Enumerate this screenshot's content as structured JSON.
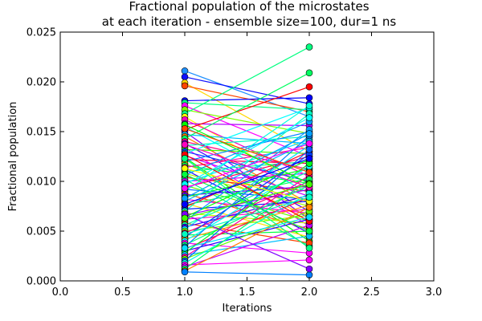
{
  "chart_data": {
    "type": "line",
    "title_lines": [
      "Fractional population of the microstates",
      "at each iteration - ensemble size=100, dur=1 ns"
    ],
    "xlabel": "Iterations",
    "ylabel": "Fractional population",
    "xlim": [
      0.0,
      3.0
    ],
    "ylim": [
      0.0,
      0.025
    ],
    "xticks": [
      "0.0",
      "0.5",
      "1.0",
      "1.5",
      "2.0",
      "2.5",
      "3.0"
    ],
    "yticks": [
      "0.000",
      "0.005",
      "0.010",
      "0.015",
      "0.020",
      "0.025"
    ],
    "grid": false,
    "legend": "none",
    "x": [
      1,
      2
    ],
    "series": [
      {
        "values": [
          0.0211,
          0.0165
        ],
        "color": "#1e90ff"
      },
      {
        "values": [
          0.0205,
          0.0178
        ],
        "color": "#1010ff"
      },
      {
        "values": [
          0.0199,
          0.013
        ],
        "color": "#ffd700"
      },
      {
        "values": [
          0.0196,
          0.017
        ],
        "color": "#ff4500"
      },
      {
        "values": [
          0.0181,
          0.0184
        ],
        "color": "#0000ff"
      },
      {
        "values": [
          0.0179,
          0.0172
        ],
        "color": "#00ff80"
      },
      {
        "values": [
          0.0176,
          0.0125
        ],
        "color": "#ff00ff"
      },
      {
        "values": [
          0.0172,
          0.0148
        ],
        "color": "#80ff00"
      },
      {
        "values": [
          0.0168,
          0.0235
        ],
        "color": "#00ff80"
      },
      {
        "values": [
          0.0165,
          0.0092
        ],
        "color": "#ffff00"
      },
      {
        "values": [
          0.0162,
          0.0105
        ],
        "color": "#ff00c0"
      },
      {
        "values": [
          0.0158,
          0.0156
        ],
        "color": "#b000ff"
      },
      {
        "values": [
          0.0155,
          0.0088
        ],
        "color": "#00ffff"
      },
      {
        "values": [
          0.0152,
          0.0195
        ],
        "color": "#ff0000"
      },
      {
        "values": [
          0.015,
          0.0062
        ],
        "color": "#8000ff"
      },
      {
        "values": [
          0.0147,
          0.0138
        ],
        "color": "#00c0ff"
      },
      {
        "values": [
          0.0145,
          0.0078
        ],
        "color": "#ff8000"
      },
      {
        "values": [
          0.0143,
          0.0209
        ],
        "color": "#00ff60"
      },
      {
        "values": [
          0.014,
          0.0112
        ],
        "color": "#ff0080"
      },
      {
        "values": [
          0.0138,
          0.007
        ],
        "color": "#4000ff"
      },
      {
        "values": [
          0.0136,
          0.0145
        ],
        "color": "#00ffc0"
      },
      {
        "values": [
          0.0134,
          0.0055
        ],
        "color": "#ff00ff"
      },
      {
        "values": [
          0.0132,
          0.0128
        ],
        "color": "#40ff00"
      },
      {
        "values": [
          0.013,
          0.01
        ],
        "color": "#0040ff"
      },
      {
        "values": [
          0.0128,
          0.0174
        ],
        "color": "#00ffff"
      },
      {
        "values": [
          0.0126,
          0.0085
        ],
        "color": "#c000ff"
      },
      {
        "values": [
          0.0124,
          0.004
        ],
        "color": "#00ff00"
      },
      {
        "values": [
          0.0122,
          0.0118
        ],
        "color": "#ff0040"
      },
      {
        "values": [
          0.012,
          0.015
        ],
        "color": "#0080ff"
      },
      {
        "values": [
          0.0118,
          0.0065
        ],
        "color": "#ffc000"
      },
      {
        "values": [
          0.0116,
          0.0098
        ],
        "color": "#00ff40"
      },
      {
        "values": [
          0.0114,
          0.0134
        ],
        "color": "#ff00a0"
      },
      {
        "values": [
          0.0112,
          0.0048
        ],
        "color": "#2000ff"
      },
      {
        "values": [
          0.011,
          0.012
        ],
        "color": "#00ffa0"
      },
      {
        "values": [
          0.0108,
          0.0075
        ],
        "color": "#a0ff00"
      },
      {
        "values": [
          0.0106,
          0.016
        ],
        "color": "#00a0ff"
      },
      {
        "values": [
          0.0104,
          0.009
        ],
        "color": "#ff2000"
      },
      {
        "values": [
          0.0102,
          0.0035
        ],
        "color": "#00ff80"
      },
      {
        "values": [
          0.01,
          0.0108
        ],
        "color": "#e000ff"
      },
      {
        "values": [
          0.0098,
          0.0142
        ],
        "color": "#00e0ff"
      },
      {
        "values": [
          0.0096,
          0.006
        ],
        "color": "#60ff00"
      },
      {
        "values": [
          0.0094,
          0.0125
        ],
        "color": "#ff0060"
      },
      {
        "values": [
          0.0092,
          0.0082
        ],
        "color": "#0060ff"
      },
      {
        "values": [
          0.009,
          0.0176
        ],
        "color": "#00ffe0"
      },
      {
        "values": [
          0.0088,
          0.0052
        ],
        "color": "#ff6000"
      },
      {
        "values": [
          0.0086,
          0.0095
        ],
        "color": "#6000ff"
      },
      {
        "values": [
          0.0084,
          0.0113
        ],
        "color": "#00ff20"
      },
      {
        "values": [
          0.0082,
          0.0068
        ],
        "color": "#ff00e0"
      },
      {
        "values": [
          0.008,
          0.014
        ],
        "color": "#00c0ff"
      },
      {
        "values": [
          0.0078,
          0.0044
        ],
        "color": "#ffe000"
      },
      {
        "values": [
          0.0076,
          0.0103
        ],
        "color": "#00ff60"
      },
      {
        "values": [
          0.0074,
          0.013
        ],
        "color": "#ff0020"
      },
      {
        "values": [
          0.0072,
          0.008
        ],
        "color": "#0020ff"
      },
      {
        "values": [
          0.007,
          0.0168
        ],
        "color": "#00ffc0"
      },
      {
        "values": [
          0.0068,
          0.0058
        ],
        "color": "#c0ff00"
      },
      {
        "values": [
          0.0066,
          0.0092
        ],
        "color": "#a000ff"
      },
      {
        "values": [
          0.0064,
          0.0122
        ],
        "color": "#00ff00"
      },
      {
        "values": [
          0.0062,
          0.0072
        ],
        "color": "#ff00c0"
      },
      {
        "values": [
          0.006,
          0.0152
        ],
        "color": "#00a0ff"
      },
      {
        "values": [
          0.0058,
          0.0038
        ],
        "color": "#ff4000"
      },
      {
        "values": [
          0.0056,
          0.011
        ],
        "color": "#00ffa0"
      },
      {
        "values": [
          0.0054,
          0.0086
        ],
        "color": "#4000ff"
      },
      {
        "values": [
          0.0052,
          0.0136
        ],
        "color": "#00e0ff"
      },
      {
        "values": [
          0.005,
          0.0066
        ],
        "color": "#80ff00"
      },
      {
        "values": [
          0.0048,
          0.01
        ],
        "color": "#ff0080"
      },
      {
        "values": [
          0.0046,
          0.005
        ],
        "color": "#00ff40"
      },
      {
        "values": [
          0.0044,
          0.0127
        ],
        "color": "#0040ff"
      },
      {
        "values": [
          0.0042,
          0.0076
        ],
        "color": "#ffa000"
      },
      {
        "values": [
          0.004,
          0.0115
        ],
        "color": "#00ffff"
      },
      {
        "values": [
          0.0038,
          0.0028
        ],
        "color": "#ff00ff"
      },
      {
        "values": [
          0.0036,
          0.0096
        ],
        "color": "#00ff80"
      },
      {
        "values": [
          0.0034,
          0.0146
        ],
        "color": "#0080ff"
      },
      {
        "values": [
          0.0032,
          0.0084
        ],
        "color": "#ff0040"
      },
      {
        "values": [
          0.003,
          0.0062
        ],
        "color": "#2000ff"
      },
      {
        "values": [
          0.0028,
          0.0118
        ],
        "color": "#00ff20"
      },
      {
        "values": [
          0.0026,
          0.0045
        ],
        "color": "#00c0ff"
      },
      {
        "values": [
          0.0024,
          0.0106
        ],
        "color": "#ff00a0"
      },
      {
        "values": [
          0.0022,
          0.007
        ],
        "color": "#60ff00"
      },
      {
        "values": [
          0.002,
          0.0132
        ],
        "color": "#0060ff"
      },
      {
        "values": [
          0.0018,
          0.0088
        ],
        "color": "#00ffe0"
      },
      {
        "values": [
          0.0016,
          0.0021
        ],
        "color": "#ff00ff"
      },
      {
        "values": [
          0.0014,
          0.0056
        ],
        "color": "#c000ff"
      },
      {
        "values": [
          0.0012,
          0.0102
        ],
        "color": "#00ff60"
      },
      {
        "values": [
          0.001,
          0.0074
        ],
        "color": "#ff8000"
      },
      {
        "values": [
          0.0009,
          0.0006
        ],
        "color": "#0080ff"
      },
      {
        "values": [
          0.0157,
          0.0098
        ],
        "color": "#00ff00"
      },
      {
        "values": [
          0.0127,
          0.006
        ],
        "color": "#ff0000"
      },
      {
        "values": [
          0.0097,
          0.0164
        ],
        "color": "#00ffff"
      },
      {
        "values": [
          0.0067,
          0.0012
        ],
        "color": "#8000ff"
      },
      {
        "values": [
          0.0113,
          0.008
        ],
        "color": "#ffff00"
      },
      {
        "values": [
          0.0083,
          0.0148
        ],
        "color": "#00a0ff"
      },
      {
        "values": [
          0.0137,
          0.0094
        ],
        "color": "#ff00c0"
      },
      {
        "values": [
          0.0107,
          0.005
        ],
        "color": "#00ff40"
      },
      {
        "values": [
          0.0077,
          0.0123
        ],
        "color": "#0000ff"
      },
      {
        "values": [
          0.0047,
          0.0084
        ],
        "color": "#00ffc0"
      },
      {
        "values": [
          0.0153,
          0.0109
        ],
        "color": "#ff4000"
      },
      {
        "values": [
          0.0123,
          0.0033
        ],
        "color": "#00ff80"
      },
      {
        "values": [
          0.0093,
          0.0138
        ],
        "color": "#ff00ff"
      },
      {
        "values": [
          0.0063,
          0.0097
        ],
        "color": "#40ff00"
      },
      {
        "values": [
          0.0033,
          0.0064
        ],
        "color": "#00e0ff"
      }
    ]
  }
}
